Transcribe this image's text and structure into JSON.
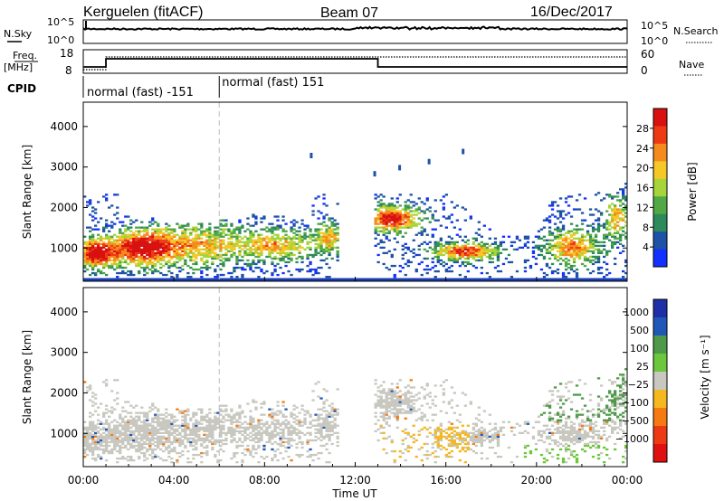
{
  "header": {
    "station": "Kerguelen (fitACF)",
    "beam": "Beam 07",
    "date": "16/Dec/2017"
  },
  "panels": {
    "nsky": {
      "label": "N.Sky",
      "tick_top": "10^5",
      "tick_bottom": "10^0",
      "right_tick_top": "10^5",
      "right_tick_bottom": "10^0",
      "right_label": "N.Search"
    },
    "freq": {
      "label_line1": "Freq.",
      "label_line2": "[MHz]",
      "ticks": [
        "18",
        "8"
      ],
      "right_ticks": [
        "60",
        "0"
      ],
      "right_label": "Nave"
    },
    "cpid": {
      "label": "CPID",
      "segments": [
        "normal (fast) -151",
        "normal (fast) 151"
      ]
    }
  },
  "colors": {
    "power": [
      "#1430ff",
      "#1d52a6",
      "#2e8a5a",
      "#52a845",
      "#a6d43a",
      "#f5c828",
      "#f58a1e",
      "#ee3a14",
      "#d81010"
    ],
    "velocity": [
      "#1d2fa8",
      "#2058b8",
      "#4f9a4a",
      "#6cc83a",
      "#c8c8c0",
      "#f5b81e",
      "#f57a12",
      "#ee3a14",
      "#e01010"
    ],
    "base_line": "#1a3cb0"
  },
  "chart_data": [
    {
      "type": "heatmap",
      "name": "power",
      "ylabel": "Slant Range [km]",
      "ylim": [
        180,
        4600
      ],
      "yticks": [
        1000,
        2000,
        3000,
        4000
      ],
      "colorbar": {
        "label": "Power [dB]",
        "range": [
          0,
          32
        ],
        "ticks": [
          4,
          8,
          12,
          16,
          20,
          24,
          28
        ]
      },
      "x_range_hours": [
        0,
        24
      ],
      "regions": [
        {
          "t": [
            0,
            13
          ],
          "r": [
            300,
            1900
          ],
          "level": "mixed"
        },
        {
          "t": [
            13,
            18
          ],
          "r": [
            400,
            2400
          ],
          "level": "mixed"
        },
        {
          "t": [
            20,
            24
          ],
          "r": [
            300,
            2600
          ],
          "level": "mixed"
        }
      ],
      "data_gap_hours": [
        11.2,
        12.8
      ]
    },
    {
      "type": "heatmap",
      "name": "velocity",
      "ylabel": "Slant Range [km]",
      "ylim": [
        180,
        4600
      ],
      "yticks": [
        1000,
        2000,
        3000,
        4000
      ],
      "colorbar": {
        "label": "Velocity [m s⁻¹]",
        "ticks": [
          "1000",
          "500",
          "100",
          "25",
          "−25",
          "−100",
          "−500",
          "−1000"
        ]
      },
      "x_range_hours": [
        0,
        24
      ],
      "data_gap_hours": [
        11.2,
        12.8
      ]
    }
  ],
  "x_axis": {
    "label": "Time UT",
    "ticks": [
      "00:00",
      "04:00",
      "08:00",
      "12:00",
      "16:00",
      "20:00",
      "00:00"
    ],
    "range_hours": [
      0,
      24
    ]
  },
  "cpid_change_hours": 6
}
